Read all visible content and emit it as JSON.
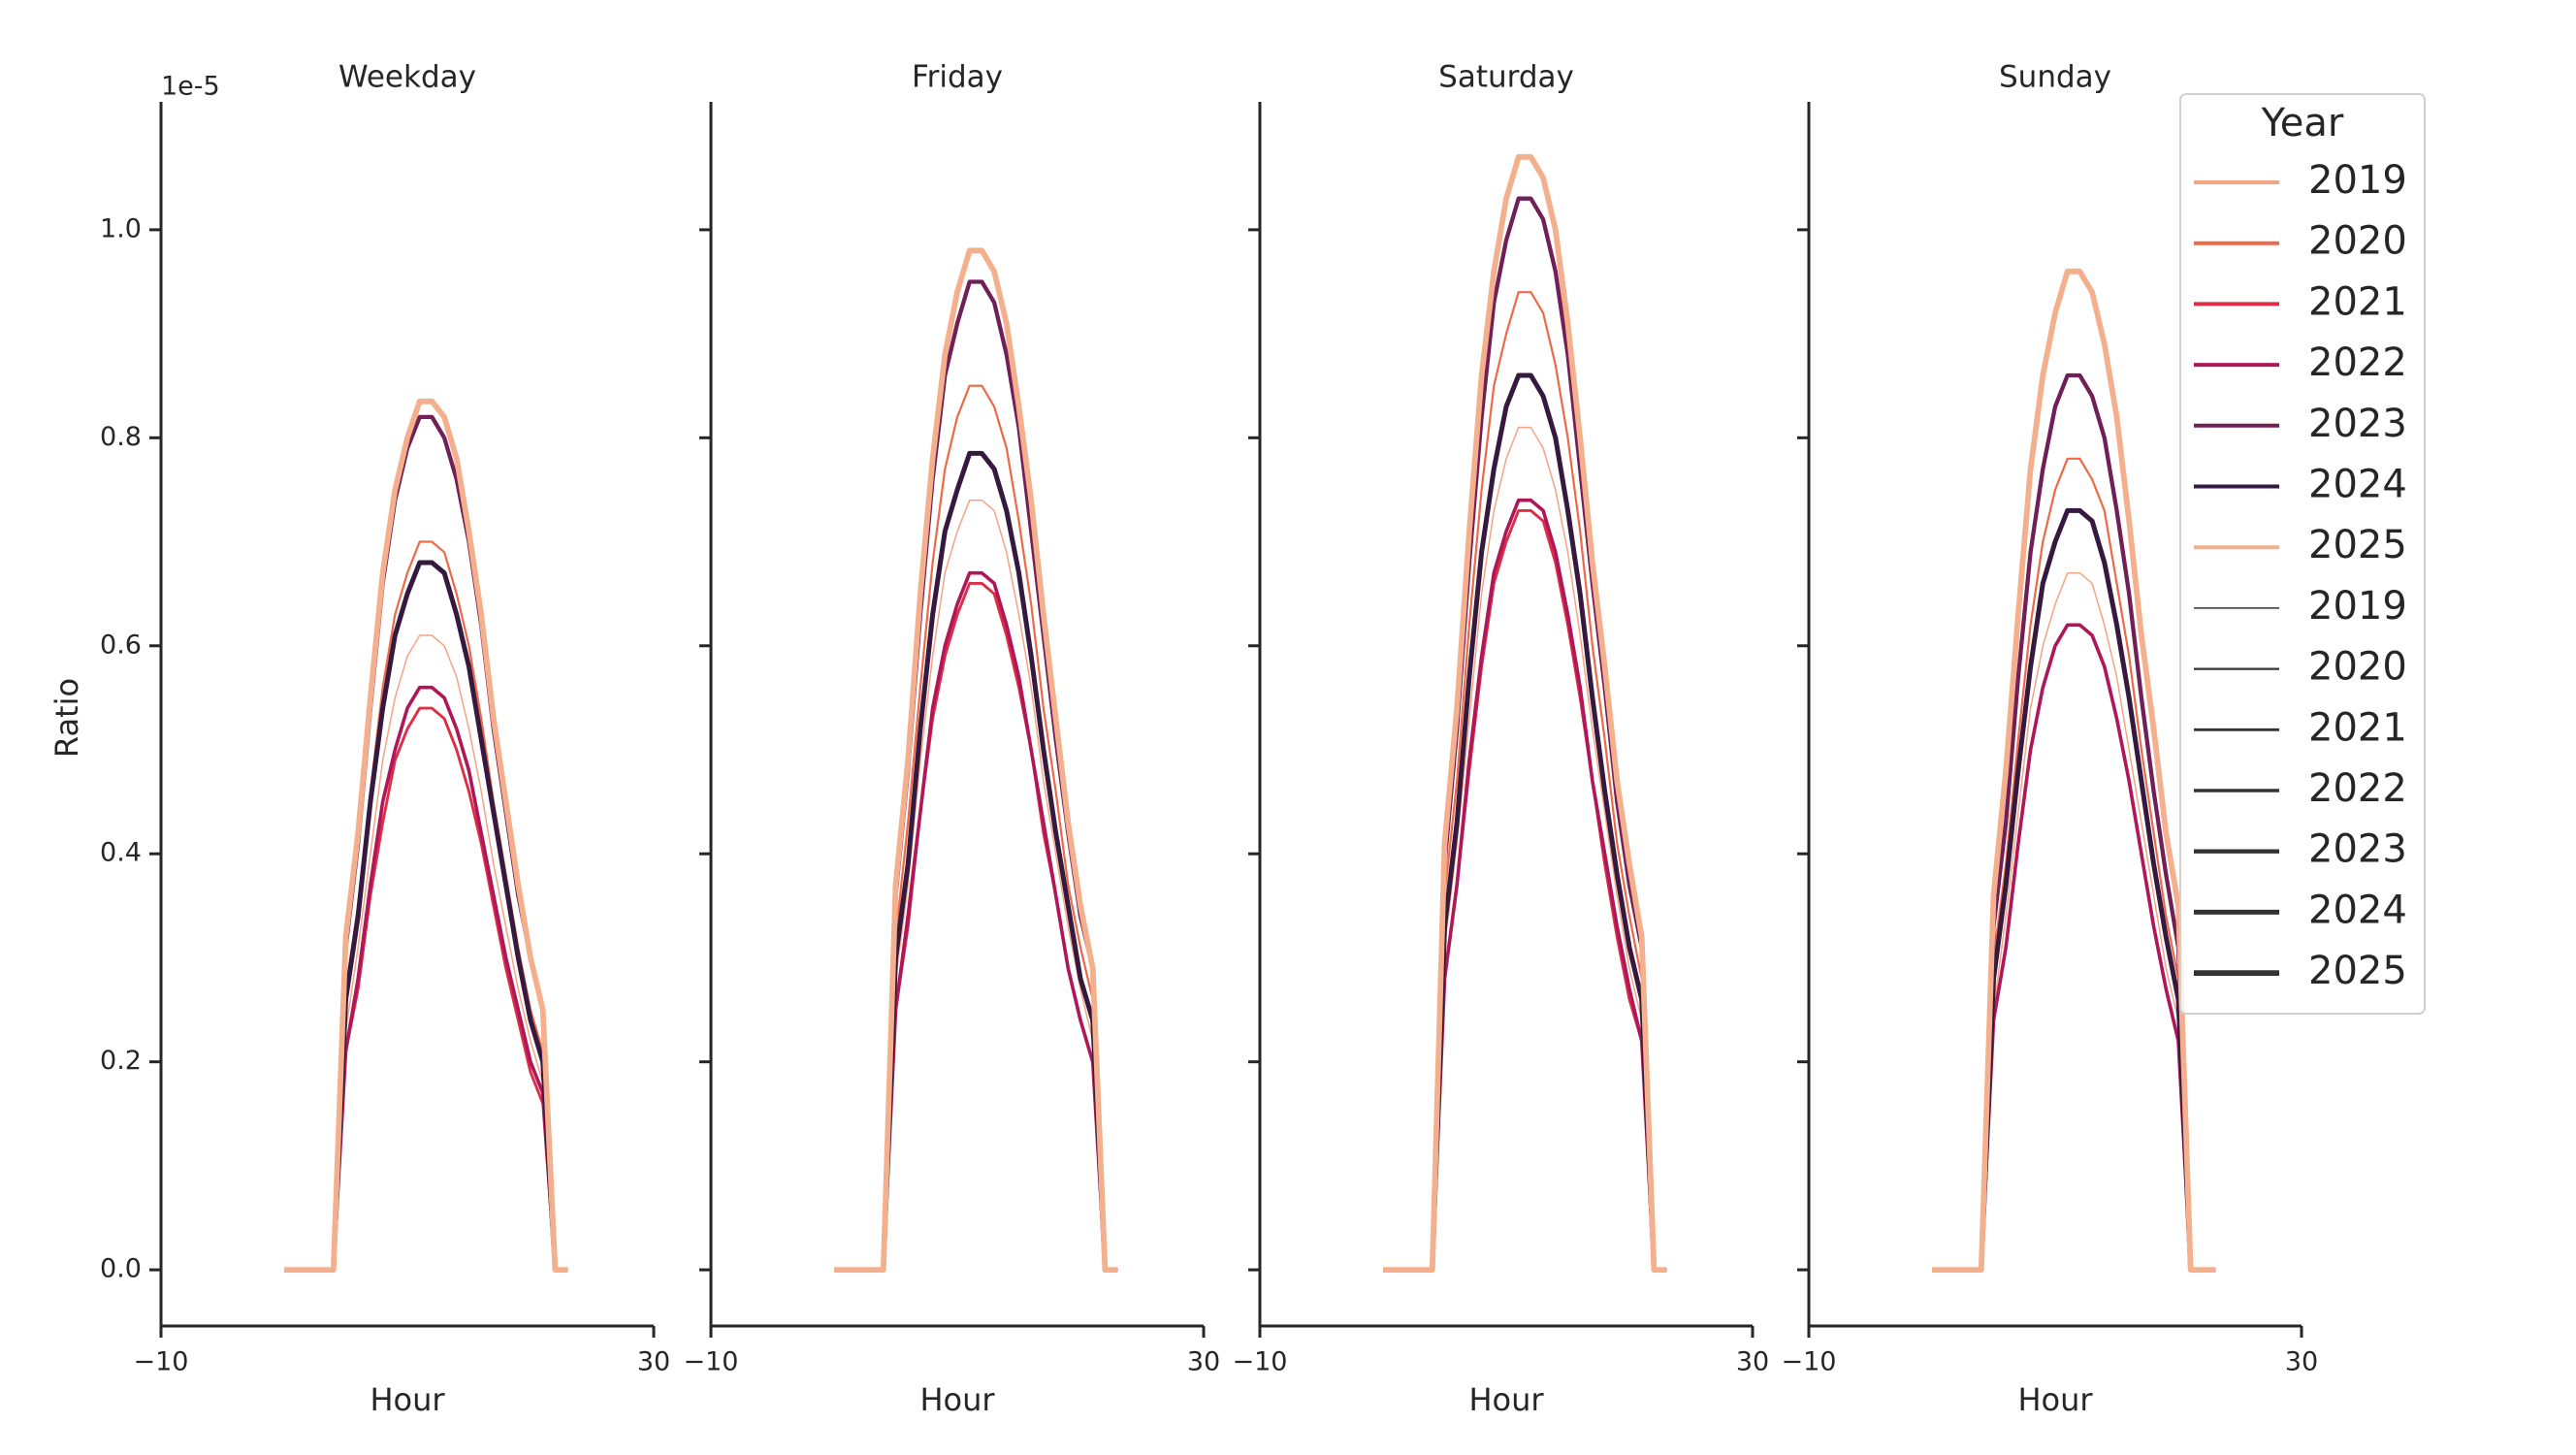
{
  "chart_data": [
    {
      "type": "line",
      "title": "Weekday",
      "xlabel": "Hour",
      "ylabel": "Ratio",
      "y_offset_label": "1e-5",
      "legend_title": "Year",
      "legend": "upper right",
      "x": [
        0,
        1,
        2,
        3,
        4,
        5,
        6,
        7,
        8,
        9,
        10,
        11,
        12,
        13,
        14,
        15,
        16,
        17,
        18,
        19,
        20,
        21,
        22,
        23
      ],
      "xlim": [
        -10,
        30
      ],
      "xticks": [
        {
          "value": -10,
          "label": "−10"
        },
        30
      ],
      "ylim": [
        -0.054,
        1.123
      ],
      "yticks": [
        {
          "value": 0,
          "label": "0.0"
        },
        0.2,
        0.4,
        0.6,
        0.8,
        {
          "value": 1,
          "label": "1.0"
        }
      ],
      "series": [
        {
          "name": "2019",
          "color": "#f3a583",
          "linewidth": 1.5,
          "values": [
            0,
            0,
            0,
            0,
            0,
            0.23,
            0.31,
            0.4,
            0.49,
            0.55,
            0.59,
            0.61,
            0.61,
            0.6,
            0.57,
            0.52,
            0.46,
            0.39,
            0.33,
            0.27,
            0.22,
            0.18,
            0,
            0
          ]
        },
        {
          "name": "2020",
          "color": "#ec6a48",
          "linewidth": 2.2,
          "values": [
            0,
            0,
            0,
            0,
            0,
            0.27,
            0.35,
            0.46,
            0.56,
            0.63,
            0.67,
            0.7,
            0.7,
            0.69,
            0.65,
            0.6,
            0.53,
            0.45,
            0.38,
            0.31,
            0.25,
            0.21,
            0,
            0
          ]
        },
        {
          "name": "2021",
          "color": "#dd2e45",
          "linewidth": 2.9,
          "values": [
            0,
            0,
            0,
            0,
            0,
            0.21,
            0.27,
            0.36,
            0.43,
            0.49,
            0.52,
            0.54,
            0.54,
            0.53,
            0.5,
            0.46,
            0.41,
            0.35,
            0.29,
            0.24,
            0.19,
            0.16,
            0,
            0
          ]
        },
        {
          "name": "2022",
          "color": "#b01759",
          "linewidth": 3.6,
          "values": [
            0,
            0,
            0,
            0,
            0,
            0.21,
            0.28,
            0.37,
            0.45,
            0.5,
            0.54,
            0.56,
            0.56,
            0.55,
            0.52,
            0.48,
            0.42,
            0.36,
            0.3,
            0.25,
            0.2,
            0.17,
            0,
            0
          ]
        },
        {
          "name": "2023",
          "color": "#701f57",
          "linewidth": 4.3,
          "values": [
            0,
            0,
            0,
            0,
            0,
            0.31,
            0.41,
            0.54,
            0.66,
            0.74,
            0.79,
            0.82,
            0.82,
            0.8,
            0.76,
            0.7,
            0.62,
            0.52,
            0.44,
            0.36,
            0.3,
            0.25,
            0,
            0
          ]
        },
        {
          "name": "2024",
          "color": "#35193e",
          "linewidth": 5.0,
          "values": [
            0,
            0,
            0,
            0,
            0,
            0.26,
            0.34,
            0.45,
            0.54,
            0.61,
            0.65,
            0.68,
            0.68,
            0.67,
            0.63,
            0.58,
            0.51,
            0.44,
            0.37,
            0.3,
            0.24,
            0.2,
            0,
            0
          ]
        },
        {
          "name": "2025",
          "color": "#f4b08c",
          "linewidth": 5.8,
          "values": [
            0,
            0,
            0,
            0,
            0,
            0.32,
            0.42,
            0.55,
            0.67,
            0.75,
            0.8,
            0.835,
            0.835,
            0.82,
            0.78,
            0.71,
            0.63,
            0.53,
            0.45,
            0.37,
            0.3,
            0.25,
            0,
            0
          ]
        }
      ]
    },
    {
      "type": "line",
      "title": "Friday",
      "xlabel": "Hour",
      "x": [
        0,
        1,
        2,
        3,
        4,
        5,
        6,
        7,
        8,
        9,
        10,
        11,
        12,
        13,
        14,
        15,
        16,
        17,
        18,
        19,
        20,
        21,
        22,
        23
      ],
      "xlim": [
        -10,
        30
      ],
      "xticks": [
        {
          "value": -10,
          "label": "−10"
        },
        30
      ],
      "ylim": [
        -0.054,
        1.123
      ],
      "series": [
        {
          "name": "2019",
          "color": "#f3a583",
          "linewidth": 1.5,
          "values": [
            0,
            0,
            0,
            0,
            0,
            0.28,
            0.37,
            0.49,
            0.59,
            0.67,
            0.71,
            0.74,
            0.74,
            0.73,
            0.69,
            0.63,
            0.56,
            0.47,
            0.4,
            0.33,
            0.27,
            0.22,
            0,
            0
          ]
        },
        {
          "name": "2020",
          "color": "#ec6a48",
          "linewidth": 2.2,
          "values": [
            0,
            0,
            0,
            0,
            0,
            0.32,
            0.43,
            0.56,
            0.68,
            0.77,
            0.82,
            0.85,
            0.85,
            0.83,
            0.79,
            0.72,
            0.64,
            0.54,
            0.46,
            0.37,
            0.31,
            0.26,
            0,
            0
          ]
        },
        {
          "name": "2021",
          "color": "#dd2e45",
          "linewidth": 2.9,
          "values": [
            0,
            0,
            0,
            0,
            0,
            0.25,
            0.33,
            0.44,
            0.53,
            0.59,
            0.63,
            0.66,
            0.66,
            0.65,
            0.61,
            0.56,
            0.5,
            0.42,
            0.36,
            0.29,
            0.24,
            0.2,
            0,
            0
          ]
        },
        {
          "name": "2022",
          "color": "#b01759",
          "linewidth": 3.6,
          "values": [
            0,
            0,
            0,
            0,
            0,
            0.25,
            0.34,
            0.44,
            0.54,
            0.6,
            0.64,
            0.67,
            0.67,
            0.66,
            0.62,
            0.57,
            0.5,
            0.43,
            0.36,
            0.29,
            0.24,
            0.2,
            0,
            0
          ]
        },
        {
          "name": "2023",
          "color": "#701f57",
          "linewidth": 4.3,
          "values": [
            0,
            0,
            0,
            0,
            0,
            0.36,
            0.48,
            0.63,
            0.76,
            0.86,
            0.91,
            0.95,
            0.95,
            0.93,
            0.88,
            0.81,
            0.71,
            0.61,
            0.51,
            0.42,
            0.34,
            0.29,
            0,
            0
          ]
        },
        {
          "name": "2024",
          "color": "#35193e",
          "linewidth": 5.0,
          "values": [
            0,
            0,
            0,
            0,
            0,
            0.3,
            0.39,
            0.52,
            0.63,
            0.71,
            0.75,
            0.785,
            0.785,
            0.77,
            0.73,
            0.67,
            0.59,
            0.5,
            0.42,
            0.35,
            0.28,
            0.24,
            0,
            0
          ]
        },
        {
          "name": "2025",
          "color": "#f4b08c",
          "linewidth": 5.8,
          "values": [
            0,
            0,
            0,
            0,
            0,
            0.37,
            0.49,
            0.65,
            0.78,
            0.88,
            0.94,
            0.98,
            0.98,
            0.96,
            0.91,
            0.83,
            0.74,
            0.63,
            0.53,
            0.43,
            0.35,
            0.29,
            0,
            0
          ]
        }
      ]
    },
    {
      "type": "line",
      "title": "Saturday",
      "xlabel": "Hour",
      "x": [
        0,
        1,
        2,
        3,
        4,
        5,
        6,
        7,
        8,
        9,
        10,
        11,
        12,
        13,
        14,
        15,
        16,
        17,
        18,
        19,
        20,
        21,
        22,
        23
      ],
      "xlim": [
        -10,
        30
      ],
      "xticks": [
        {
          "value": -10,
          "label": "−10"
        },
        30
      ],
      "ylim": [
        -0.054,
        1.123
      ],
      "series": [
        {
          "name": "2019",
          "color": "#f3a583",
          "linewidth": 1.5,
          "values": [
            0,
            0,
            0,
            0,
            0,
            0.31,
            0.41,
            0.53,
            0.65,
            0.73,
            0.78,
            0.81,
            0.81,
            0.79,
            0.75,
            0.69,
            0.61,
            0.52,
            0.44,
            0.36,
            0.29,
            0.24,
            0,
            0
          ]
        },
        {
          "name": "2020",
          "color": "#ec6a48",
          "linewidth": 2.2,
          "values": [
            0,
            0,
            0,
            0,
            0,
            0.36,
            0.47,
            0.62,
            0.75,
            0.85,
            0.9,
            0.94,
            0.94,
            0.92,
            0.87,
            0.8,
            0.71,
            0.6,
            0.51,
            0.41,
            0.34,
            0.28,
            0,
            0
          ]
        },
        {
          "name": "2021",
          "color": "#dd2e45",
          "linewidth": 2.9,
          "values": [
            0,
            0,
            0,
            0,
            0,
            0.28,
            0.37,
            0.48,
            0.58,
            0.66,
            0.7,
            0.73,
            0.73,
            0.72,
            0.68,
            0.62,
            0.55,
            0.47,
            0.39,
            0.32,
            0.26,
            0.22,
            0,
            0
          ]
        },
        {
          "name": "2022",
          "color": "#b01759",
          "linewidth": 3.6,
          "values": [
            0,
            0,
            0,
            0,
            0,
            0.28,
            0.37,
            0.49,
            0.59,
            0.67,
            0.71,
            0.74,
            0.74,
            0.73,
            0.69,
            0.63,
            0.56,
            0.47,
            0.4,
            0.33,
            0.27,
            0.22,
            0,
            0
          ]
        },
        {
          "name": "2023",
          "color": "#701f57",
          "linewidth": 4.3,
          "values": [
            0,
            0,
            0,
            0,
            0,
            0.39,
            0.52,
            0.68,
            0.82,
            0.93,
            0.99,
            1.03,
            1.03,
            1.01,
            0.96,
            0.88,
            0.77,
            0.66,
            0.56,
            0.45,
            0.37,
            0.31,
            0,
            0
          ]
        },
        {
          "name": "2024",
          "color": "#35193e",
          "linewidth": 5.0,
          "values": [
            0,
            0,
            0,
            0,
            0,
            0.33,
            0.43,
            0.57,
            0.69,
            0.77,
            0.83,
            0.86,
            0.86,
            0.84,
            0.8,
            0.73,
            0.65,
            0.55,
            0.46,
            0.38,
            0.31,
            0.26,
            0,
            0
          ]
        },
        {
          "name": "2025",
          "color": "#f4b08c",
          "linewidth": 5.8,
          "values": [
            0,
            0,
            0,
            0,
            0,
            0.41,
            0.54,
            0.71,
            0.86,
            0.96,
            1.03,
            1.07,
            1.07,
            1.05,
            1.0,
            0.91,
            0.8,
            0.68,
            0.58,
            0.47,
            0.39,
            0.32,
            0,
            0
          ]
        }
      ]
    },
    {
      "type": "line",
      "title": "Sunday",
      "xlabel": "Hour",
      "x": [
        0,
        1,
        2,
        3,
        4,
        5,
        6,
        7,
        8,
        9,
        10,
        11,
        12,
        13,
        14,
        15,
        16,
        17,
        18,
        19,
        20,
        21,
        22,
        23
      ],
      "xlim": [
        -10,
        30
      ],
      "xticks": [
        {
          "value": -10,
          "label": "−10"
        },
        30
      ],
      "ylim": [
        -0.054,
        1.123
      ],
      "series": [
        {
          "name": "2019",
          "color": "#f3a583",
          "linewidth": 1.5,
          "values": [
            0,
            0,
            0,
            0,
            0,
            0.25,
            0.34,
            0.44,
            0.54,
            0.6,
            0.64,
            0.67,
            0.67,
            0.66,
            0.62,
            0.57,
            0.5,
            0.43,
            0.36,
            0.29,
            0.24,
            0,
            0,
            0
          ]
        },
        {
          "name": "2020",
          "color": "#ec6a48",
          "linewidth": 2.2,
          "values": [
            0,
            0,
            0,
            0,
            0,
            0.3,
            0.39,
            0.51,
            0.62,
            0.7,
            0.75,
            0.78,
            0.78,
            0.76,
            0.73,
            0.66,
            0.59,
            0.5,
            0.42,
            0.34,
            0.28,
            0,
            0,
            0
          ]
        },
        {
          "name": "2021",
          "color": "#dd2e45",
          "linewidth": 2.9,
          "values": [
            0,
            0,
            0,
            0,
            0,
            0.24,
            0.31,
            0.41,
            0.5,
            0.56,
            0.6,
            0.62,
            0.62,
            0.61,
            0.58,
            0.53,
            0.47,
            0.4,
            0.33,
            0.27,
            0.22,
            0,
            0,
            0
          ]
        },
        {
          "name": "2022",
          "color": "#b01759",
          "linewidth": 3.6,
          "values": [
            0,
            0,
            0,
            0,
            0,
            0.24,
            0.31,
            0.41,
            0.5,
            0.56,
            0.6,
            0.62,
            0.62,
            0.61,
            0.58,
            0.53,
            0.47,
            0.4,
            0.33,
            0.27,
            0.22,
            0,
            0,
            0
          ]
        },
        {
          "name": "2023",
          "color": "#701f57",
          "linewidth": 4.3,
          "values": [
            0,
            0,
            0,
            0,
            0,
            0.33,
            0.43,
            0.57,
            0.69,
            0.77,
            0.83,
            0.86,
            0.86,
            0.84,
            0.8,
            0.73,
            0.65,
            0.55,
            0.46,
            0.38,
            0.31,
            0,
            0,
            0
          ]
        },
        {
          "name": "2024",
          "color": "#35193e",
          "linewidth": 5.0,
          "values": [
            0,
            0,
            0,
            0,
            0,
            0.28,
            0.37,
            0.48,
            0.58,
            0.66,
            0.7,
            0.73,
            0.73,
            0.72,
            0.68,
            0.62,
            0.55,
            0.47,
            0.39,
            0.32,
            0.26,
            0,
            0,
            0
          ]
        },
        {
          "name": "2025",
          "color": "#f4b08c",
          "linewidth": 5.8,
          "values": [
            0,
            0,
            0,
            0,
            0,
            0.36,
            0.48,
            0.63,
            0.77,
            0.86,
            0.92,
            0.96,
            0.96,
            0.94,
            0.89,
            0.82,
            0.72,
            0.61,
            0.52,
            0.42,
            0.35,
            0,
            0,
            0
          ]
        }
      ]
    }
  ]
}
